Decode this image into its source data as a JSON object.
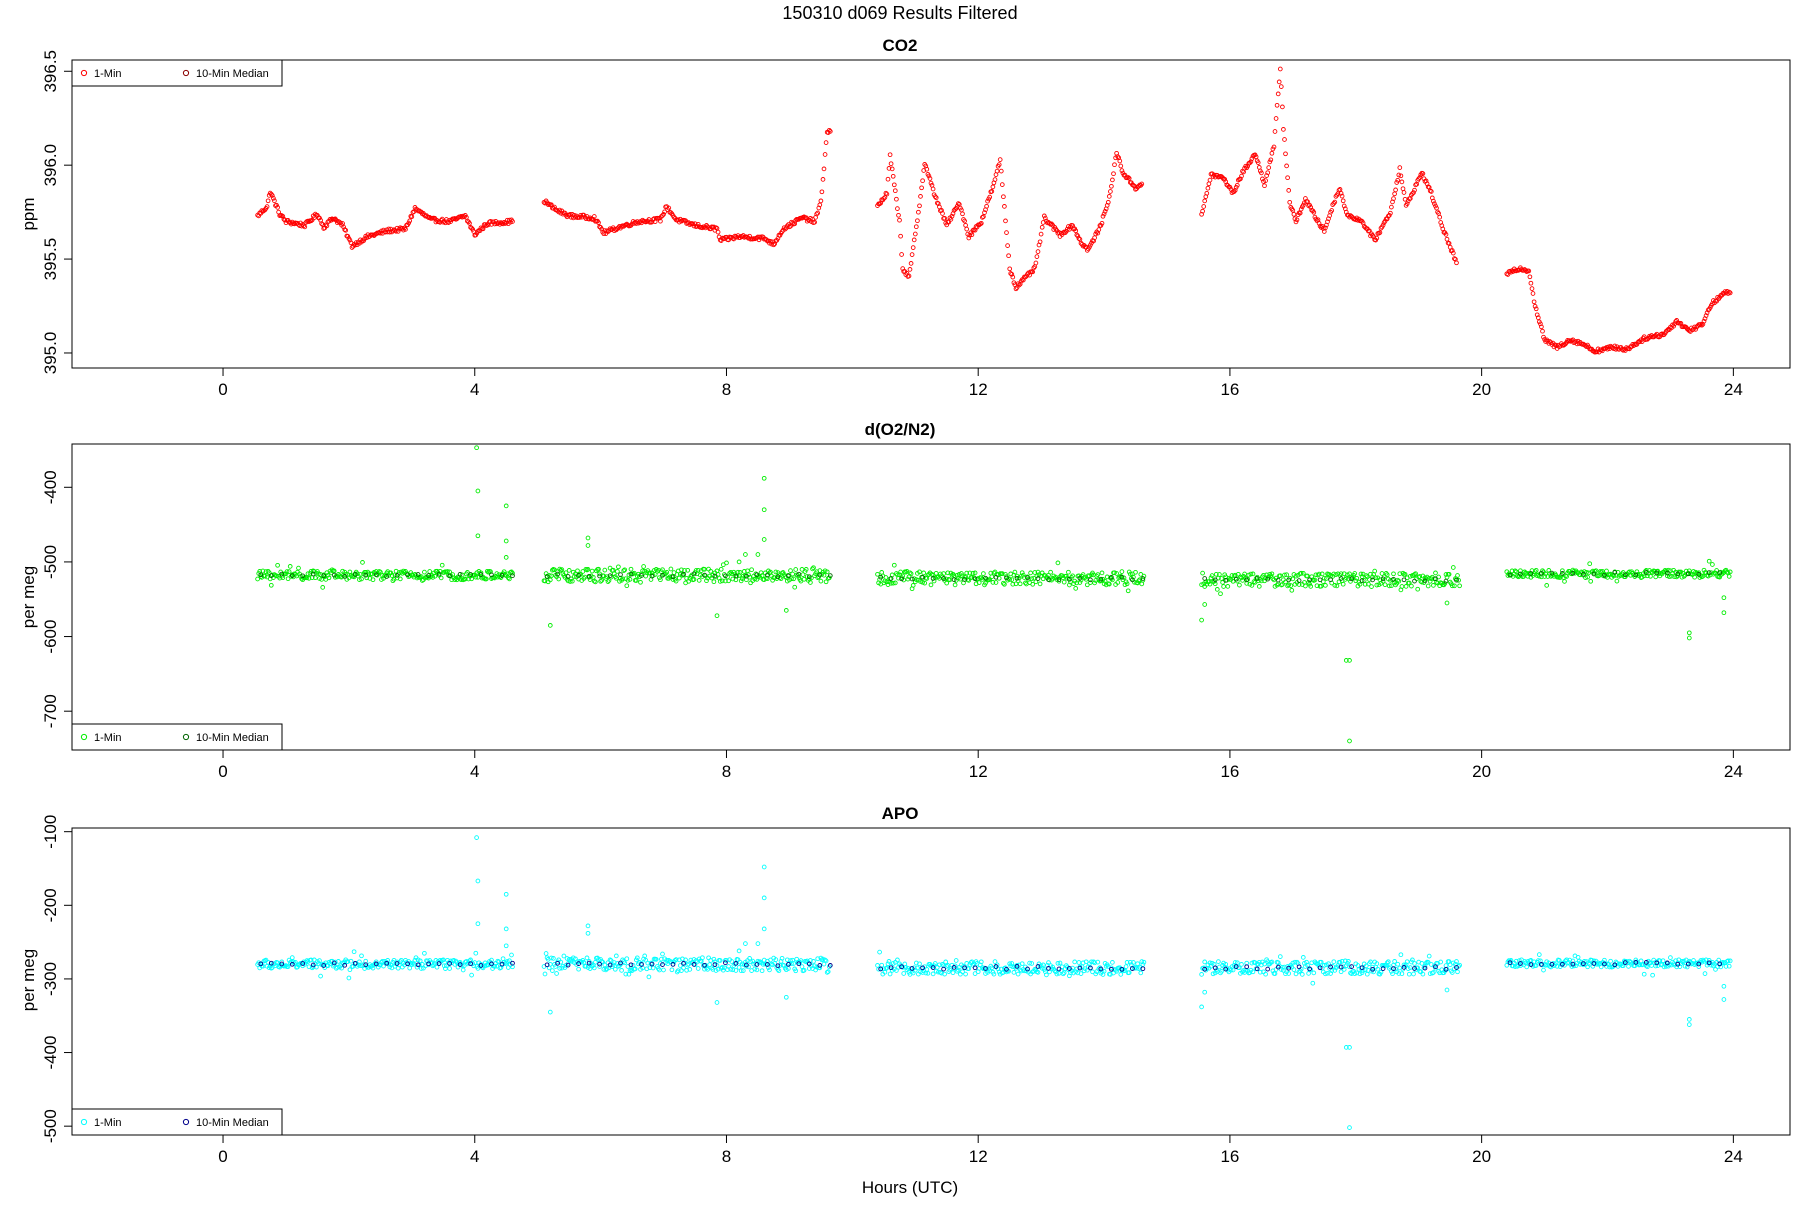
{
  "figure": {
    "title": "150310   d069   Results Filtered",
    "xlabel": "Hours (UTC)"
  },
  "chart_data": [
    {
      "type": "scatter",
      "title": "CO2",
      "ylabel": "ppm",
      "xlim": [
        -2.4,
        24.9
      ],
      "ylim": [
        394.92,
        396.56
      ],
      "x_ticks": [
        0,
        4,
        8,
        12,
        16,
        20,
        24
      ],
      "x_tick_labels": [
        "0",
        "4",
        "8",
        "12",
        "16",
        "20",
        "24"
      ],
      "y_ticks": [
        395.0,
        395.5,
        396.0,
        396.5
      ],
      "y_tick_labels": [
        "395.0",
        "395.5",
        "396.0",
        "396.5"
      ],
      "legend": {
        "position": "top-left",
        "entries": [
          "1-Min",
          "10-Min Median"
        ]
      },
      "series": [
        {
          "name": "1-Min",
          "color": "#ff0000",
          "style": "profile",
          "segments": [
            [
              [
                0.55,
                395.73
              ],
              [
                0.7,
                395.78
              ],
              [
                0.75,
                395.86
              ],
              [
                0.9,
                395.74
              ],
              [
                1.0,
                395.7
              ],
              [
                1.3,
                395.68
              ],
              [
                1.5,
                395.74
              ],
              [
                1.6,
                395.67
              ],
              [
                1.75,
                395.72
              ],
              [
                1.9,
                395.68
              ],
              [
                2.05,
                395.57
              ],
              [
                2.3,
                395.62
              ],
              [
                2.6,
                395.65
              ],
              [
                2.9,
                395.66
              ],
              [
                3.05,
                395.77
              ],
              [
                3.3,
                395.71
              ],
              [
                3.6,
                395.7
              ],
              [
                3.85,
                395.73
              ],
              [
                4.0,
                395.63
              ],
              [
                4.2,
                395.69
              ],
              [
                4.6,
                395.7
              ]
            ],
            [
              [
                5.1,
                395.81
              ],
              [
                5.3,
                395.76
              ],
              [
                5.5,
                395.73
              ],
              [
                5.9,
                395.72
              ],
              [
                6.05,
                395.64
              ],
              [
                6.3,
                395.67
              ],
              [
                6.6,
                395.7
              ],
              [
                6.95,
                395.71
              ],
              [
                7.05,
                395.78
              ],
              [
                7.2,
                395.71
              ],
              [
                7.5,
                395.68
              ],
              [
                7.85,
                395.66
              ],
              [
                7.9,
                395.6
              ],
              [
                8.2,
                395.62
              ],
              [
                8.6,
                395.61
              ],
              [
                8.75,
                395.58
              ],
              [
                8.9,
                395.66
              ],
              [
                9.2,
                395.72
              ],
              [
                9.4,
                395.7
              ],
              [
                9.5,
                395.8
              ],
              [
                9.6,
                396.18
              ],
              [
                9.65,
                396.18
              ]
            ],
            [
              [
                10.4,
                395.78
              ],
              [
                10.55,
                395.85
              ],
              [
                10.6,
                396.05
              ],
              [
                10.75,
                395.7
              ],
              [
                10.8,
                395.45
              ],
              [
                10.9,
                395.4
              ],
              [
                11.05,
                395.75
              ],
              [
                11.15,
                396.01
              ],
              [
                11.3,
                395.85
              ],
              [
                11.5,
                395.68
              ],
              [
                11.7,
                395.8
              ],
              [
                11.85,
                395.62
              ],
              [
                12.05,
                395.7
              ],
              [
                12.25,
                395.9
              ],
              [
                12.35,
                396.03
              ],
              [
                12.5,
                395.45
              ],
              [
                12.6,
                395.35
              ],
              [
                12.9,
                395.45
              ],
              [
                13.05,
                395.72
              ],
              [
                13.3,
                395.63
              ],
              [
                13.5,
                395.68
              ],
              [
                13.65,
                395.58
              ],
              [
                13.75,
                395.55
              ],
              [
                13.95,
                395.68
              ],
              [
                14.1,
                395.85
              ],
              [
                14.2,
                396.07
              ],
              [
                14.3,
                395.96
              ],
              [
                14.5,
                395.88
              ],
              [
                14.6,
                395.9
              ]
            ],
            [
              [
                15.55,
                395.73
              ],
              [
                15.7,
                395.95
              ],
              [
                15.9,
                395.93
              ],
              [
                16.05,
                395.85
              ],
              [
                16.2,
                395.96
              ],
              [
                16.4,
                396.06
              ],
              [
                16.55,
                395.9
              ],
              [
                16.7,
                396.1
              ],
              [
                16.8,
                396.52
              ],
              [
                16.85,
                396.2
              ],
              [
                16.95,
                395.8
              ],
              [
                17.05,
                395.7
              ],
              [
                17.2,
                395.82
              ],
              [
                17.4,
                395.7
              ],
              [
                17.5,
                395.65
              ],
              [
                17.65,
                395.8
              ],
              [
                17.75,
                395.88
              ],
              [
                17.85,
                395.74
              ],
              [
                18.1,
                395.7
              ],
              [
                18.3,
                395.6
              ],
              [
                18.55,
                395.75
              ],
              [
                18.7,
                395.98
              ],
              [
                18.8,
                395.78
              ],
              [
                19.05,
                395.96
              ],
              [
                19.2,
                395.85
              ],
              [
                19.4,
                395.65
              ],
              [
                19.6,
                395.48
              ]
            ],
            [
              [
                20.4,
                395.42
              ],
              [
                20.6,
                395.45
              ],
              [
                20.75,
                395.44
              ],
              [
                20.85,
                395.25
              ],
              [
                21.0,
                395.07
              ],
              [
                21.2,
                395.03
              ],
              [
                21.4,
                395.07
              ],
              [
                21.6,
                395.05
              ],
              [
                21.8,
                395.01
              ],
              [
                22.1,
                395.03
              ],
              [
                22.3,
                395.02
              ],
              [
                22.6,
                395.08
              ],
              [
                22.9,
                395.1
              ],
              [
                23.1,
                395.17
              ],
              [
                23.3,
                395.12
              ],
              [
                23.5,
                395.15
              ],
              [
                23.65,
                395.26
              ],
              [
                23.85,
                395.32
              ],
              [
                23.95,
                395.32
              ]
            ]
          ]
        },
        {
          "name": "10-Min Median",
          "color": "#8b0000",
          "style": "points",
          "points": []
        }
      ]
    },
    {
      "type": "scatter",
      "title": "d(O2/N2)",
      "ylabel": "per meg",
      "xlim": [
        -2.4,
        24.9
      ],
      "ylim": [
        -752,
        -342
      ],
      "x_ticks": [
        0,
        4,
        8,
        12,
        16,
        20,
        24
      ],
      "x_tick_labels": [
        "0",
        "4",
        "8",
        "12",
        "16",
        "20",
        "24"
      ],
      "y_ticks": [
        -700,
        -600,
        -500,
        -400
      ],
      "y_tick_labels": [
        "-700",
        "-600",
        "-500",
        "-400"
      ],
      "legend": {
        "position": "bottom-left",
        "entries": [
          "1-Min",
          "10-Min Median"
        ]
      },
      "series": [
        {
          "name": "1-Min",
          "color": "#00ee00",
          "style": "band",
          "segments": [
            {
              "from": 0.55,
              "to": 4.6,
              "base": -518,
              "spread": 6
            },
            {
              "from": 5.1,
              "to": 9.65,
              "base": -518,
              "spread": 9
            },
            {
              "from": 10.4,
              "to": 14.65,
              "base": -522,
              "spread": 9
            },
            {
              "from": 15.55,
              "to": 19.65,
              "base": -524,
              "spread": 9
            },
            {
              "from": 20.4,
              "to": 23.95,
              "base": -516,
              "spread": 5
            }
          ],
          "outliers": [
            [
              4.03,
              -347
            ],
            [
              4.05,
              -405
            ],
            [
              4.05,
              -465
            ],
            [
              4.5,
              -425
            ],
            [
              4.5,
              -472
            ],
            [
              4.5,
              -494
            ],
            [
              5.2,
              -585
            ],
            [
              5.8,
              -468
            ],
            [
              5.8,
              -478
            ],
            [
              8.2,
              -500
            ],
            [
              8.3,
              -490
            ],
            [
              8.5,
              -490
            ],
            [
              8.6,
              -388
            ],
            [
              8.6,
              -430
            ],
            [
              8.6,
              -470
            ],
            [
              7.85,
              -572
            ],
            [
              8.95,
              -565
            ],
            [
              15.55,
              -578
            ],
            [
              15.6,
              -557
            ],
            [
              17.85,
              -632
            ],
            [
              17.9,
              -632
            ],
            [
              17.9,
              -740
            ],
            [
              19.45,
              -555
            ],
            [
              23.3,
              -595
            ],
            [
              23.3,
              -602
            ],
            [
              23.85,
              -568
            ],
            [
              23.85,
              -548
            ]
          ]
        },
        {
          "name": "10-Min Median",
          "color": "#006400",
          "style": "median",
          "offset": 0
        }
      ]
    },
    {
      "type": "scatter",
      "title": "APO",
      "ylabel": "per meg",
      "xlim": [
        -2.4,
        24.9
      ],
      "ylim": [
        -512,
        -95
      ],
      "x_ticks": [
        0,
        4,
        8,
        12,
        16,
        20,
        24
      ],
      "x_tick_labels": [
        "0",
        "4",
        "8",
        "12",
        "16",
        "20",
        "24"
      ],
      "y_ticks": [
        -500,
        -400,
        -300,
        -200,
        -100
      ],
      "y_tick_labels": [
        "-500",
        "-400",
        "-300",
        "-200",
        "-100"
      ],
      "legend": {
        "position": "bottom-left",
        "entries": [
          "1-Min",
          "10-Min Median"
        ]
      },
      "series": [
        {
          "name": "1-Min",
          "color": "#00ffff",
          "style": "band",
          "segments": [
            {
              "from": 0.55,
              "to": 4.6,
              "base": -280,
              "spread": 6
            },
            {
              "from": 5.1,
              "to": 9.65,
              "base": -280,
              "spread": 9
            },
            {
              "from": 10.4,
              "to": 14.65,
              "base": -285,
              "spread": 9
            },
            {
              "from": 15.55,
              "to": 19.65,
              "base": -285,
              "spread": 9
            },
            {
              "from": 20.4,
              "to": 23.95,
              "base": -279,
              "spread": 5
            }
          ],
          "outliers": [
            [
              4.03,
              -108
            ],
            [
              4.05,
              -167
            ],
            [
              4.05,
              -225
            ],
            [
              4.5,
              -185
            ],
            [
              4.5,
              -232
            ],
            [
              4.5,
              -255
            ],
            [
              5.2,
              -345
            ],
            [
              5.8,
              -228
            ],
            [
              5.8,
              -238
            ],
            [
              8.2,
              -262
            ],
            [
              8.3,
              -252
            ],
            [
              8.5,
              -252
            ],
            [
              8.6,
              -148
            ],
            [
              8.6,
              -190
            ],
            [
              8.6,
              -232
            ],
            [
              7.85,
              -332
            ],
            [
              8.95,
              -325
            ],
            [
              15.55,
              -338
            ],
            [
              15.6,
              -318
            ],
            [
              17.85,
              -393
            ],
            [
              17.9,
              -393
            ],
            [
              17.9,
              -502
            ],
            [
              19.45,
              -315
            ],
            [
              23.3,
              -355
            ],
            [
              23.3,
              -362
            ],
            [
              23.85,
              -328
            ],
            [
              23.85,
              -310
            ]
          ]
        },
        {
          "name": "10-Min Median",
          "color": "#00008b",
          "style": "median",
          "offset": 0
        }
      ]
    }
  ]
}
